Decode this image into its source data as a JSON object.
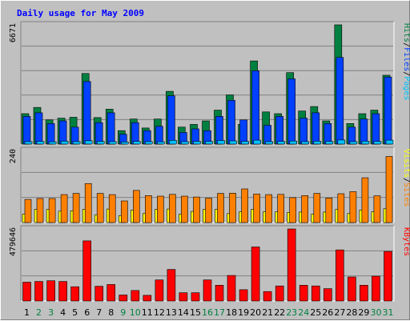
{
  "chart_data": {
    "type": "bar",
    "title": "Daily usage for May 2009",
    "categories": [
      "1",
      "2",
      "3",
      "4",
      "5",
      "6",
      "7",
      "8",
      "9",
      "10",
      "11",
      "12",
      "13",
      "14",
      "15",
      "16",
      "17",
      "18",
      "19",
      "20",
      "21",
      "22",
      "23",
      "24",
      "25",
      "26",
      "27",
      "28",
      "29",
      "30",
      "31"
    ],
    "weekend_days": [
      "2",
      "3",
      "9",
      "10",
      "16",
      "17",
      "23",
      "24",
      "30",
      "31"
    ],
    "colors": {
      "hits": "#008040",
      "files": "#0040ff",
      "pages": "#00c0ff",
      "visits": "#ffff00",
      "sites": "#ff8000",
      "kbytes": "#ff0000",
      "weekday_label": "#000000",
      "weekend_label": "#008040",
      "title": "#0000ff"
    },
    "panels": [
      {
        "name": "hits_files_pages",
        "ymax_label": "6671",
        "ylim": [
          0,
          6671
        ],
        "legend": [
          {
            "text": "Hits",
            "color": "#008040"
          },
          {
            "text": "/",
            "color": "#000000"
          },
          {
            "text": "Files",
            "color": "#0040ff"
          },
          {
            "text": "/",
            "color": "#000000"
          },
          {
            "text": "Pages",
            "color": "#00c0ff"
          }
        ],
        "series": [
          {
            "name": "Hits",
            "values": [
              1700,
              2050,
              1350,
              1450,
              1500,
              3950,
              1480,
              1950,
              750,
              1400,
              900,
              1400,
              2950,
              950,
              1100,
              1300,
              1900,
              2750,
              1100,
              4650,
              1800,
              1700,
              4000,
              1850,
              2100,
              1300,
              6671,
              1150,
              1700,
              1900,
              3850
            ]
          },
          {
            "name": "Files",
            "values": [
              1550,
              1750,
              1150,
              1300,
              950,
              3500,
              1200,
              1750,
              550,
              1200,
              750,
              1000,
              2700,
              650,
              850,
              750,
              1550,
              2450,
              1350,
              4100,
              1050,
              1550,
              3650,
              1450,
              1750,
              1150,
              4850,
              950,
              1400,
              1700,
              3750
            ]
          },
          {
            "name": "Pages",
            "values": [
              140,
              150,
              130,
              160,
              140,
              190,
              150,
              140,
              120,
              150,
              140,
              130,
              210,
              140,
              150,
              150,
              200,
              180,
              150,
              220,
              140,
              150,
              170,
              140,
              160,
              150,
              230,
              140,
              160,
              150,
              220
            ]
          }
        ]
      },
      {
        "name": "visits_sites",
        "ymax_label": "240",
        "ylim": [
          0,
          240
        ],
        "legend": [
          {
            "text": "Visits",
            "color": "#ffff00"
          },
          {
            "text": "/",
            "color": "#000000"
          },
          {
            "text": "Sites",
            "color": "#ff8000"
          }
        ],
        "series": [
          {
            "name": "Visits",
            "values": [
              28,
              44,
              44,
              38,
              39,
              44,
              25,
              45,
              23,
              41,
              30,
              44,
              45,
              28,
              37,
              44,
              44,
              30,
              36,
              44,
              36,
              36,
              34,
              35,
              28,
              35,
              44,
              30,
              42,
              36,
              46
            ]
          },
          {
            "name": "Sites",
            "values": [
              77,
              80,
              80,
              93,
              97,
              130,
              97,
              93,
              72,
              107,
              90,
              88,
              94,
              88,
              85,
              81,
              97,
              98,
              112,
              95,
              93,
              94,
              83,
              90,
              97,
              82,
              96,
              103,
              149,
              89,
              220
            ]
          }
        ]
      },
      {
        "name": "kbytes",
        "ymax_label": "479646",
        "ylim": [
          0,
          479646
        ],
        "legend": [
          {
            "text": "KBytes",
            "color": "#ff0000"
          }
        ],
        "series": [
          {
            "name": "KBytes",
            "values": [
              125000,
              130000,
              135000,
              130000,
              95000,
              400000,
              98000,
              110000,
              40000,
              70000,
              38000,
              140000,
              210000,
              55000,
              55000,
              140000,
              105000,
              170000,
              75000,
              360000,
              63000,
              100000,
              479646,
              105000,
              100000,
              82000,
              340000,
              160000,
              105000,
              165000,
              330000
            ]
          }
        ]
      }
    ]
  }
}
